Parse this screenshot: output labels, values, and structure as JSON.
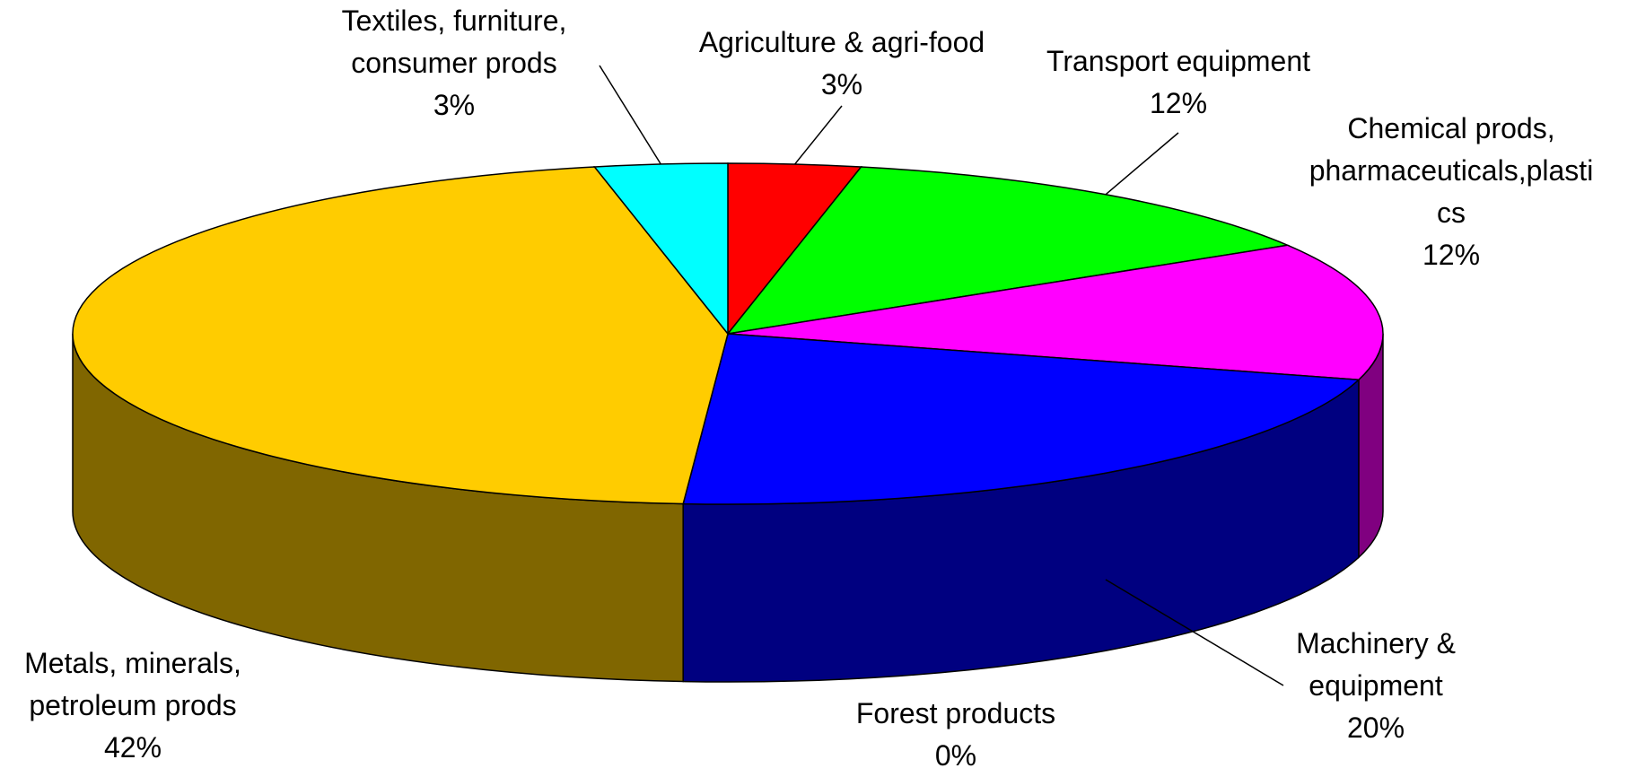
{
  "chart_data": {
    "type": "pie3d",
    "categories": [
      "Agriculture & agri-food",
      "Transport equipment",
      "Chemical prods, pharmaceuticals,plastics",
      "Machinery & equipment",
      "Forest products",
      "Metals, minerals, petroleum prods",
      "Textiles, furniture, consumer prods"
    ],
    "values": [
      3,
      12,
      12,
      20,
      0,
      42,
      3
    ],
    "value_labels": [
      "3%",
      "12%",
      "12%",
      "20%",
      "0%",
      "42%",
      "3%"
    ],
    "colors": [
      "#ff0000",
      "#00ff00",
      "#ff00ff",
      "#0000ff",
      "#993366",
      "#ffcc00",
      "#00ffff"
    ]
  }
}
